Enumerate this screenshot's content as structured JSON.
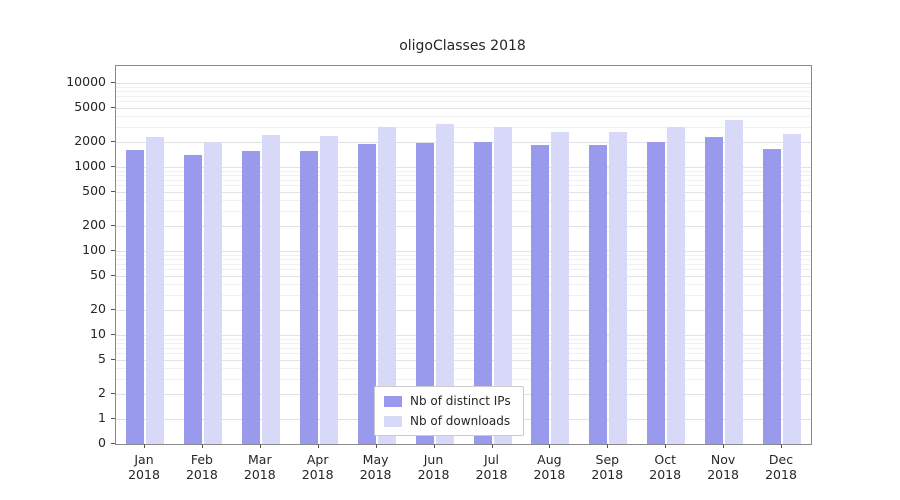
{
  "title": "oligoClasses 2018",
  "chart_data": {
    "type": "bar",
    "title": "oligoClasses 2018",
    "categories": [
      "Jan",
      "Feb",
      "Mar",
      "Apr",
      "May",
      "Jun",
      "Jul",
      "Aug",
      "Sep",
      "Oct",
      "Nov",
      "Dec"
    ],
    "year": "2018",
    "series": [
      {
        "name": "Nb of distinct IPs",
        "color": "#9999ee",
        "values": [
          1600,
          1400,
          1550,
          1550,
          1850,
          1900,
          2000,
          1800,
          1800,
          1950,
          2250,
          1650
        ]
      },
      {
        "name": "Nb of downloads",
        "color": "#d8d8f8",
        "values": [
          2250,
          2000,
          2400,
          2300,
          3000,
          3200,
          3000,
          2600,
          2600,
          3000,
          3600,
          2450
        ]
      }
    ],
    "yscale": "log",
    "yticks": [
      0,
      1,
      2,
      5,
      10,
      20,
      50,
      100,
      200,
      500,
      1000,
      2000,
      5000,
      10000
    ],
    "ylim": [
      0,
      13000
    ],
    "xlabel": "",
    "ylabel": "",
    "grid": true,
    "legend_position": "lower center"
  }
}
